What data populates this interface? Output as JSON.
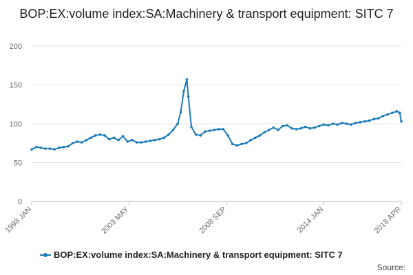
{
  "chart_data": {
    "type": "line",
    "title": "BOP:EX:volume index:SA:Machinery & transport equipment: SITC 7",
    "xlabel": "",
    "ylabel": "",
    "ylim": [
      0,
      200
    ],
    "y_ticks": [
      0,
      50,
      100,
      150,
      200
    ],
    "x_range": [
      "1998 JAN",
      "2018 APR"
    ],
    "x_tick_labels": [
      "1998 JAN",
      "2003 MAY",
      "2008 SEP",
      "2014 JAN",
      "2018 APR"
    ],
    "grid": true,
    "legend_placement": "bottom",
    "source_label": "Source:",
    "line_color": "#1a7bb9",
    "series": [
      {
        "name": "BOP:EX:volume index:SA:Machinery & transport equipment: SITC 7",
        "points": [
          [
            "1998 JAN",
            67
          ],
          [
            "1998 APR",
            70
          ],
          [
            "1998 JUL",
            69
          ],
          [
            "1998 OCT",
            68
          ],
          [
            "1999 JAN",
            68
          ],
          [
            "1999 APR",
            67
          ],
          [
            "1999 JUL",
            69
          ],
          [
            "1999 OCT",
            70
          ],
          [
            "2000 JAN",
            71
          ],
          [
            "2000 APR",
            75
          ],
          [
            "2000 JUL",
            77
          ],
          [
            "2000 OCT",
            76
          ],
          [
            "2001 JAN",
            79
          ],
          [
            "2001 APR",
            82
          ],
          [
            "2001 JUL",
            85
          ],
          [
            "2001 OCT",
            86
          ],
          [
            "2002 JAN",
            85
          ],
          [
            "2002 APR",
            80
          ],
          [
            "2002 JUL",
            82
          ],
          [
            "2002 OCT",
            79
          ],
          [
            "2003 JAN",
            84
          ],
          [
            "2003 APR",
            77
          ],
          [
            "2003 JUL",
            79
          ],
          [
            "2003 OCT",
            76
          ],
          [
            "2004 JAN",
            76
          ],
          [
            "2004 APR",
            77
          ],
          [
            "2004 JUL",
            78
          ],
          [
            "2004 OCT",
            79
          ],
          [
            "2005 JAN",
            80
          ],
          [
            "2005 APR",
            82
          ],
          [
            "2005 JUL",
            86
          ],
          [
            "2005 OCT",
            92
          ],
          [
            "2006 JAN",
            100
          ],
          [
            "2006 MAR",
            115
          ],
          [
            "2006 MAY",
            142
          ],
          [
            "2006 JUL",
            157
          ],
          [
            "2006 AUG",
            135
          ],
          [
            "2006 OCT",
            96
          ],
          [
            "2007 JAN",
            86
          ],
          [
            "2007 APR",
            85
          ],
          [
            "2007 JUL",
            90
          ],
          [
            "2007 OCT",
            91
          ],
          [
            "2008 JAN",
            92
          ],
          [
            "2008 APR",
            93
          ],
          [
            "2008 JUL",
            93
          ],
          [
            "2008 OCT",
            85
          ],
          [
            "2009 JAN",
            74
          ],
          [
            "2009 APR",
            72
          ],
          [
            "2009 JUL",
            74
          ],
          [
            "2009 OCT",
            75
          ],
          [
            "2010 JAN",
            79
          ],
          [
            "2010 APR",
            82
          ],
          [
            "2010 JUL",
            85
          ],
          [
            "2010 OCT",
            89
          ],
          [
            "2011 JAN",
            92
          ],
          [
            "2011 APR",
            95
          ],
          [
            "2011 JUL",
            92
          ],
          [
            "2011 OCT",
            97
          ],
          [
            "2012 JAN",
            98
          ],
          [
            "2012 APR",
            94
          ],
          [
            "2012 JUL",
            93
          ],
          [
            "2012 OCT",
            94
          ],
          [
            "2013 JAN",
            96
          ],
          [
            "2013 APR",
            94
          ],
          [
            "2013 JUL",
            95
          ],
          [
            "2013 OCT",
            97
          ],
          [
            "2014 JAN",
            99
          ],
          [
            "2014 APR",
            98
          ],
          [
            "2014 JUL",
            100
          ],
          [
            "2014 OCT",
            99
          ],
          [
            "2015 JAN",
            101
          ],
          [
            "2015 APR",
            100
          ],
          [
            "2015 JUL",
            99
          ],
          [
            "2015 OCT",
            101
          ],
          [
            "2016 JAN",
            102
          ],
          [
            "2016 APR",
            103
          ],
          [
            "2016 JUL",
            104
          ],
          [
            "2016 OCT",
            106
          ],
          [
            "2017 JAN",
            107
          ],
          [
            "2017 APR",
            110
          ],
          [
            "2017 JUL",
            112
          ],
          [
            "2017 OCT",
            114
          ],
          [
            "2018 JAN",
            116
          ],
          [
            "2018 MAR",
            114
          ],
          [
            "2018 APR",
            103
          ]
        ]
      }
    ]
  }
}
